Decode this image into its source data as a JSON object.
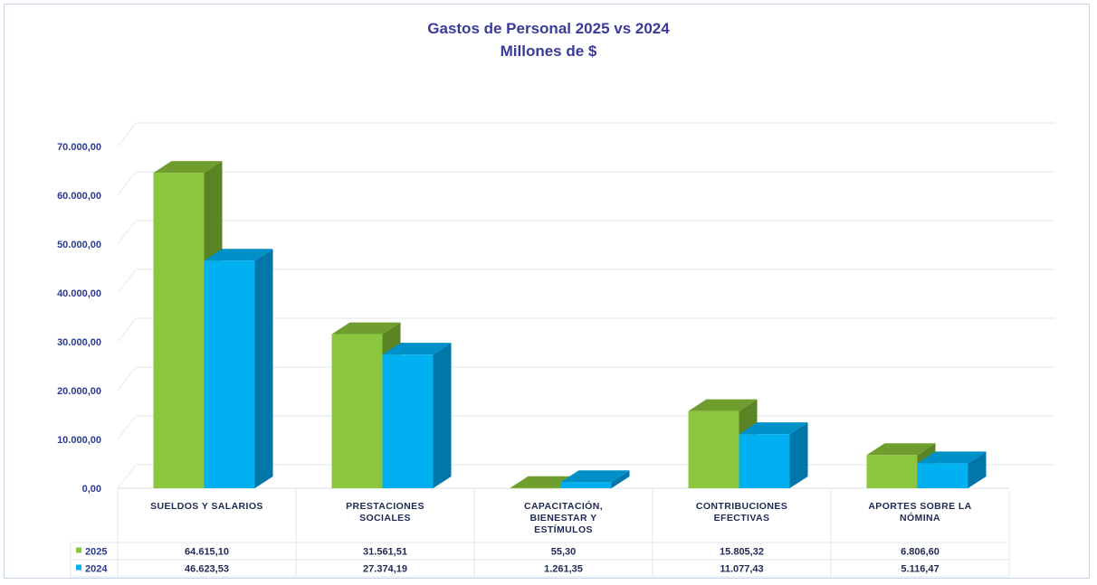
{
  "chart_data": {
    "type": "bar",
    "title": "Gastos de Personal 2025 vs 2024",
    "subtitle": "Millones de $",
    "categories": [
      [
        "SUELDOS Y SALARIOS"
      ],
      [
        "PRESTACIONES",
        "SOCIALES"
      ],
      [
        "CAPACITACIÓN,",
        "BIENESTAR Y",
        "ESTÍMULOS"
      ],
      [
        "CONTRIBUCIONES",
        "EFECTIVAS"
      ],
      [
        "APORTES SOBRE LA",
        "NÓMINA"
      ]
    ],
    "series": [
      {
        "name": "2025",
        "color": "#8cc63f",
        "top_color": "#6f9e2e",
        "side_color": "#5b8424",
        "values": [
          64615.1,
          31561.51,
          55.3,
          15805.32,
          6806.6
        ],
        "labels": [
          "64.615,10",
          "31.561,51",
          "55,30",
          "15.805,32",
          "6.806,60"
        ]
      },
      {
        "name": "2024",
        "color": "#00b0f0",
        "top_color": "#0090c8",
        "side_color": "#0077a8",
        "values": [
          46623.53,
          27374.19,
          1261.35,
          11077.43,
          5116.47
        ],
        "labels": [
          "46.623,53",
          "27.374,19",
          "1.261,35",
          "11.077,43",
          "5.116,47"
        ]
      }
    ],
    "yticks": [
      "0,00",
      "10.000,00",
      "20.000,00",
      "30.000,00",
      "40.000,00",
      "50.000,00",
      "60.000,00",
      "70.000,00"
    ],
    "ylim": [
      0,
      70000
    ],
    "grid": true,
    "legend": "table-below"
  }
}
